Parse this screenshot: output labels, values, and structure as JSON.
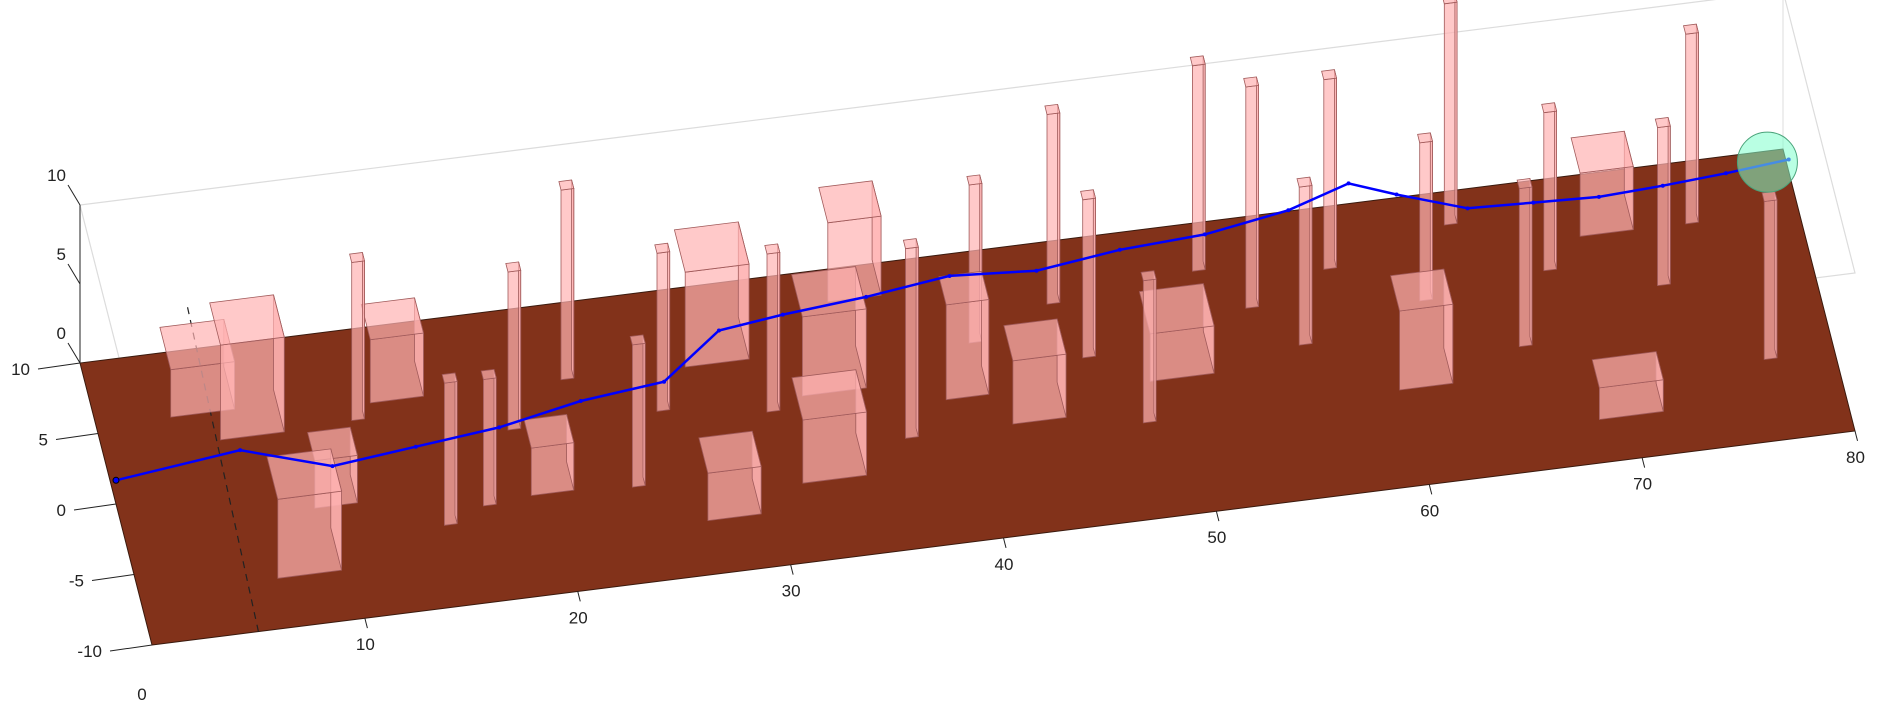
{
  "chart_data": {
    "type": "scatter",
    "subtype": "3d-scene",
    "title": "",
    "xlabel": "",
    "ylabel": "",
    "zlabel": "",
    "xlim": [
      0,
      80
    ],
    "ylim": [
      -10,
      10
    ],
    "zlim": [
      0,
      10
    ],
    "x_ticks": [
      "10",
      "20",
      "30",
      "40",
      "50",
      "60",
      "70",
      "80"
    ],
    "y_ticks": [
      "-10",
      "-5",
      "0",
      "5",
      "10"
    ],
    "z_ticks": [
      "0",
      "5",
      "10"
    ],
    "origin_label": "0",
    "grid": false,
    "legend": "none",
    "colors": {
      "ground": "#82321a",
      "obstacle": "#ffb2b2",
      "path": "#0000ff",
      "goal": "#80ffcc"
    },
    "path": {
      "x": [
        0,
        6,
        10,
        14,
        18,
        22,
        26,
        29,
        32,
        36,
        40,
        44,
        48,
        52,
        56,
        59,
        61,
        64,
        67,
        70,
        73,
        76,
        79
      ],
      "y": [
        0,
        1,
        -1,
        -0.5,
        0,
        1,
        1.5,
        4,
        4,
        4.5,
        5,
        4.5,
        5,
        5,
        5.5,
        6.5,
        5,
        3,
        2.5,
        2,
        2,
        2.2,
        2.5
      ],
      "z": [
        1.5,
        1.5,
        1.6,
        1.7,
        1.8,
        1.9,
        2,
        2.5,
        3,
        3,
        3.2,
        3.3,
        3.5,
        3.8,
        4.2,
        4.5,
        4.8,
        5.2,
        5.5,
        5.8,
        6.0,
        6.1,
        6.2
      ]
    },
    "goal": {
      "x": 78,
      "y": 2.5,
      "z": 6.2
    },
    "obstacles": [
      {
        "x": 7,
        "y": 5,
        "h": 6,
        "w": 3,
        "d": 3
      },
      {
        "x": 5,
        "y": 7,
        "h": 3,
        "w": 3,
        "d": 3
      },
      {
        "x": 8,
        "y": -5,
        "h": 5,
        "w": 3,
        "d": 3
      },
      {
        "x": 10,
        "y": -1,
        "h": 3,
        "w": 2,
        "d": 2
      },
      {
        "x": 12,
        "y": 4,
        "h": 10,
        "w": 0.6,
        "d": 0.6
      },
      {
        "x": 14,
        "y": 6,
        "h": 4,
        "w": 2.5,
        "d": 2.5
      },
      {
        "x": 15,
        "y": -4,
        "h": 9,
        "w": 0.6,
        "d": 0.6
      },
      {
        "x": 17,
        "y": -3,
        "h": 8,
        "w": 0.6,
        "d": 0.6
      },
      {
        "x": 19,
        "y": 2,
        "h": 10,
        "w": 0.6,
        "d": 0.6
      },
      {
        "x": 20,
        "y": -2,
        "h": 3,
        "w": 2,
        "d": 2
      },
      {
        "x": 22,
        "y": 5,
        "h": 12,
        "w": 0.6,
        "d": 0.6
      },
      {
        "x": 24,
        "y": -3,
        "h": 9,
        "w": 0.6,
        "d": 0.6
      },
      {
        "x": 26,
        "y": 2,
        "h": 10,
        "w": 0.6,
        "d": 0.6
      },
      {
        "x": 28,
        "y": -5,
        "h": 3,
        "w": 2.5,
        "d": 2.5
      },
      {
        "x": 29,
        "y": 6,
        "h": 6,
        "w": 3,
        "d": 3
      },
      {
        "x": 31,
        "y": 1,
        "h": 10,
        "w": 0.6,
        "d": 0.6
      },
      {
        "x": 33,
        "y": -3,
        "h": 4,
        "w": 3,
        "d": 3
      },
      {
        "x": 34,
        "y": 3,
        "h": 5,
        "w": 3,
        "d": 3
      },
      {
        "x": 36,
        "y": 9,
        "h": 5,
        "w": 2.5,
        "d": 2.5
      },
      {
        "x": 37,
        "y": -2,
        "h": 12,
        "w": 0.6,
        "d": 0.6
      },
      {
        "x": 40,
        "y": 1,
        "h": 6,
        "w": 2,
        "d": 2
      },
      {
        "x": 41,
        "y": 4,
        "h": 10,
        "w": 0.6,
        "d": 0.6
      },
      {
        "x": 43,
        "y": -1,
        "h": 4,
        "w": 2.5,
        "d": 2.5
      },
      {
        "x": 45,
        "y": 6,
        "h": 12,
        "w": 0.6,
        "d": 0.6
      },
      {
        "x": 46,
        "y": 2,
        "h": 10,
        "w": 0.6,
        "d": 0.6
      },
      {
        "x": 48,
        "y": -3,
        "h": 9,
        "w": 0.6,
        "d": 0.6
      },
      {
        "x": 50,
        "y": 1,
        "h": 3,
        "w": 3,
        "d": 3
      },
      {
        "x": 52,
        "y": 7,
        "h": 13,
        "w": 0.6,
        "d": 0.6
      },
      {
        "x": 54,
        "y": 4,
        "h": 14,
        "w": 0.6,
        "d": 0.6
      },
      {
        "x": 56,
        "y": 1,
        "h": 10,
        "w": 0.6,
        "d": 0.6
      },
      {
        "x": 58,
        "y": 6,
        "h": 12,
        "w": 0.6,
        "d": 0.6
      },
      {
        "x": 61,
        "y": -2,
        "h": 5,
        "w": 2.5,
        "d": 2.5
      },
      {
        "x": 62,
        "y": 3,
        "h": 10,
        "w": 0.6,
        "d": 0.6
      },
      {
        "x": 64,
        "y": 8,
        "h": 14,
        "w": 0.6,
        "d": 0.6
      },
      {
        "x": 66,
        "y": -1,
        "h": 10,
        "w": 0.6,
        "d": 0.6
      },
      {
        "x": 68,
        "y": 4,
        "h": 10,
        "w": 0.6,
        "d": 0.6
      },
      {
        "x": 70,
        "y": -6,
        "h": 2,
        "w": 3,
        "d": 2
      },
      {
        "x": 71,
        "y": 7,
        "h": 4,
        "w": 2.5,
        "d": 2.5
      },
      {
        "x": 73,
        "y": 2,
        "h": 10,
        "w": 0.6,
        "d": 0.6
      },
      {
        "x": 75,
        "y": 6,
        "h": 12,
        "w": 0.6,
        "d": 0.6
      },
      {
        "x": 77,
        "y": -4,
        "h": 10,
        "w": 0.6,
        "d": 0.6
      }
    ]
  }
}
